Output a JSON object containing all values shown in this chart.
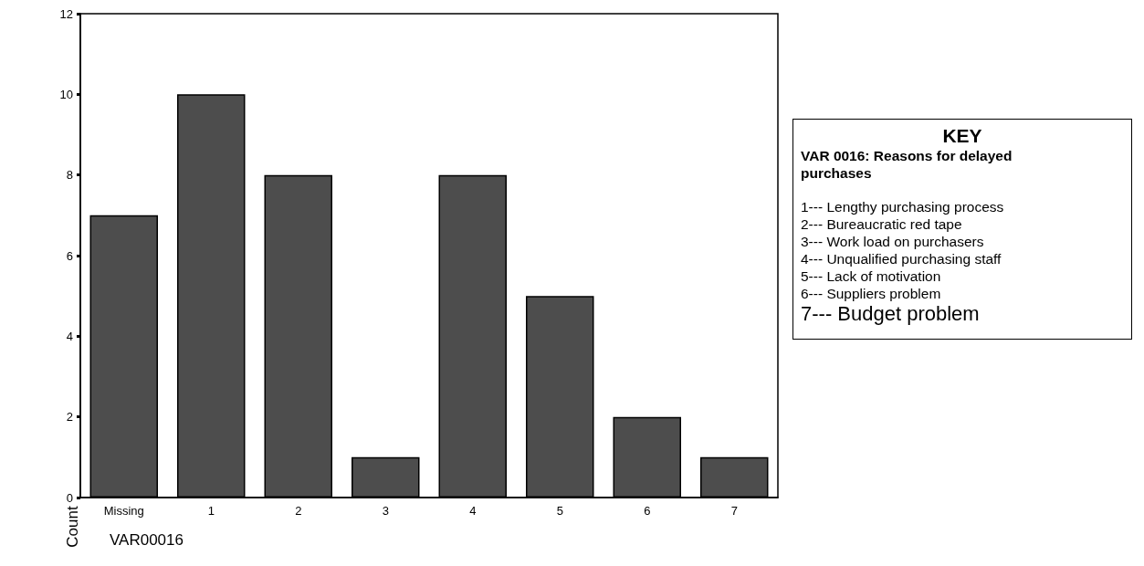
{
  "chart_data": {
    "type": "bar",
    "categories": [
      "Missing",
      "1",
      "2",
      "3",
      "4",
      "5",
      "6",
      "7"
    ],
    "values": [
      7,
      10,
      8,
      1,
      8,
      5,
      2,
      1
    ],
    "color": "#4d4d4d",
    "ylim": [
      0,
      12
    ],
    "yticks": [
      0,
      2,
      4,
      6,
      8,
      10,
      12
    ],
    "xlabel": "VAR00016",
    "ylabel": "Count",
    "annotations": [
      "KEY",
      "VAR 0016: Reasons for delayed purchases",
      "1--- Lengthy purchasing process",
      "2--- Bureaucratic red tape",
      "3--- Work load on purchasers",
      "4--- Unqualified purchasing staff",
      "5--- Lack of motivation",
      "6--- Suppliers problem",
      "7--- Budget problem"
    ]
  }
}
